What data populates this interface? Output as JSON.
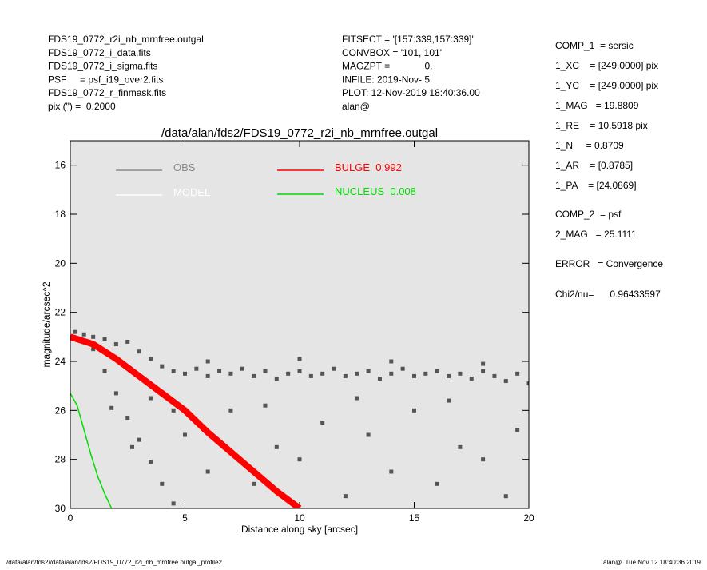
{
  "chart_data": {
    "type": "scatter",
    "title": "/data/alan/fds2/FDS19_0772_r2i_nb_mrnfree.outgal",
    "xlabel": "Distance along sky [arcsec]",
    "ylabel": "magnitude/arcsec^2",
    "xlim": [
      0,
      20
    ],
    "ylim": [
      15,
      30
    ],
    "y_reversed": true,
    "xticks": [
      0,
      5,
      10,
      15,
      20
    ],
    "yticks": [
      16,
      18,
      20,
      22,
      24,
      26,
      28,
      30
    ],
    "background": "#e5e5e5",
    "info_left": [
      "FDS19_0772_r2i_nb_mrnfree.outgal",
      "FDS19_0772_i_data.fits",
      "FDS19_0772_i_sigma.fits",
      "PSF     = psf_i19_over2.fits",
      "FDS19_0772_r_finmask.fits",
      "pix (\") =  0.2000"
    ],
    "info_middle": [
      "FITSECT = '[157:339,157:339]'",
      "CONVBOX = '101, 101'",
      "MAGZPT =             0.",
      "INFILE: 2019-Nov- 5",
      "PLOT: 12-Nov-2019 18:40:36.00",
      "alan@"
    ],
    "info_right": [
      "COMP_1  = sersic",
      "1_XC    = [249.0000] pix",
      "1_YC    = [249.0000] pix",
      "1_MAG   = 19.8809",
      "1_RE    = 10.5918 pix",
      "1_N     = 0.8709",
      "1_AR    = [0.8785]",
      "1_PA    = [24.0869]",
      "COMP_2  = psf",
      "2_MAG   = 25.1111",
      "ERROR   = Convergence",
      "Chi2/nu=      0.96433597"
    ],
    "footer_left": "/data/alan/fds2//data/alan/fds2/FDS19_0772_r2i_nb_mrnfree.outgal_profile2",
    "footer_right": "alan@  Tue Nov 12 18:40:36 2019",
    "series": [
      {
        "name": "OBS",
        "color": "#555555",
        "kind": "points",
        "x": [
          0.2,
          0.6,
          1.0,
          1.5,
          2.0,
          2.5,
          3.0,
          3.5,
          4.0,
          4.5,
          5.0,
          5.5,
          6.0,
          6.5,
          7.0,
          7.5,
          8.0,
          8.5,
          9.0,
          9.5,
          10.0,
          10.5,
          11.0,
          11.5,
          12.0,
          12.5,
          13.0,
          13.5,
          14.0,
          14.5,
          15.0,
          15.5,
          16.0,
          16.5,
          17.0,
          17.5,
          18.0,
          18.5,
          19.0,
          19.5,
          20.0,
          6.0,
          10.0,
          14.0,
          18.0,
          1.0,
          1.5,
          2.0,
          2.5,
          3.0,
          3.5,
          4.0,
          4.5,
          1.8,
          2.7,
          5.0,
          6.0,
          7.0,
          8.0,
          9.0,
          10.0,
          11.0,
          12.0,
          13.0,
          14.0,
          15.0,
          16.0,
          17.0,
          18.0,
          19.0,
          19.5,
          4.5,
          3.5,
          8.5,
          12.5,
          16.5
        ],
        "values": [
          22.8,
          22.9,
          23.0,
          23.1,
          23.3,
          23.2,
          23.6,
          23.9,
          24.2,
          24.4,
          24.5,
          24.3,
          24.6,
          24.4,
          24.5,
          24.3,
          24.6,
          24.4,
          24.7,
          24.5,
          24.4,
          24.6,
          24.5,
          24.3,
          24.6,
          24.5,
          24.4,
          24.7,
          24.5,
          24.3,
          24.6,
          24.5,
          24.4,
          24.6,
          24.5,
          24.7,
          24.4,
          24.6,
          24.8,
          24.5,
          24.9,
          24.0,
          23.9,
          24.0,
          24.1,
          23.5,
          24.4,
          25.3,
          26.3,
          27.2,
          28.1,
          29.0,
          29.8,
          25.9,
          27.5,
          27.0,
          28.5,
          26.0,
          29.0,
          27.5,
          28.0,
          26.5,
          29.5,
          27.0,
          28.5,
          26.0,
          29.0,
          27.5,
          28.0,
          29.5,
          26.8,
          26.0,
          25.5,
          25.8,
          25.5,
          25.6
        ]
      },
      {
        "name": "MODEL",
        "color": "#ffffff",
        "kind": "line",
        "x": [
          0,
          1,
          2,
          3,
          4,
          5,
          6,
          7,
          8,
          9,
          10
        ],
        "values": [
          23.0,
          23.3,
          23.9,
          24.6,
          25.3,
          26.0,
          26.9,
          27.7,
          28.5,
          29.3,
          30.0
        ]
      },
      {
        "name": "BULGE  0.992",
        "color": "#ff0000",
        "kind": "line",
        "x": [
          0,
          1,
          2,
          3,
          4,
          5,
          6,
          7,
          8,
          9,
          10
        ],
        "values": [
          23.0,
          23.3,
          23.9,
          24.6,
          25.3,
          26.0,
          26.9,
          27.7,
          28.5,
          29.3,
          30.0
        ]
      },
      {
        "name": "NUCLEUS  0.008",
        "color": "#00dd00",
        "kind": "line",
        "x": [
          0,
          0.3,
          0.6,
          0.9,
          1.2,
          1.5,
          1.8
        ],
        "values": [
          25.3,
          25.8,
          26.8,
          27.8,
          28.7,
          29.4,
          30.0
        ]
      }
    ]
  }
}
